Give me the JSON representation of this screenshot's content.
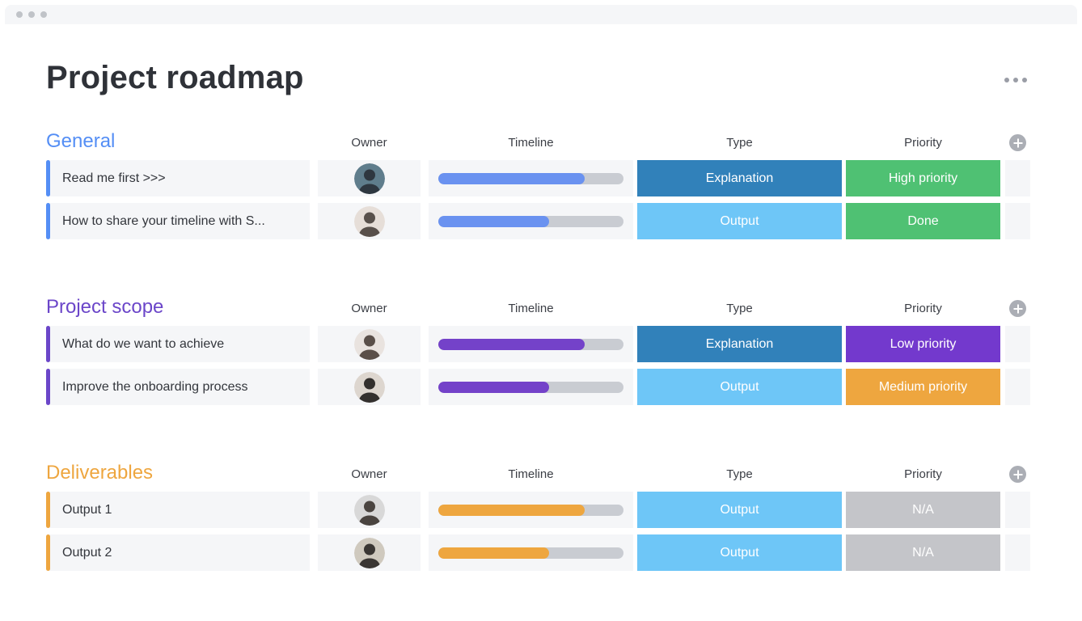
{
  "window": {
    "controls_icon": "window-dots",
    "controls_count": 3
  },
  "page": {
    "title": "Project roadmap"
  },
  "icons": {
    "board_menu": "•••",
    "add_column": "+",
    "window_controls": "•••"
  },
  "columns": {
    "owner": "Owner",
    "timeline": "Timeline",
    "type": "Type",
    "priority": "Priority"
  },
  "colors": {
    "topbar_bg": "#f5f6f8",
    "row_bg": "#f5f6f8",
    "track": "#c9ccd2",
    "badge_text": "#ffffff",
    "plus_circle": "#abaeb5",
    "ellipsis": "#9a9da6",
    "type_explanation": "#3181ba",
    "type_output": "#6ec6f7",
    "priority_high": "#4fc173",
    "priority_done": "#4fc173",
    "priority_low": "#7339cd",
    "priority_medium": "#eea63f",
    "priority_na": "#c4c5c9"
  },
  "groups": [
    {
      "name": "General",
      "color": "#548ef5",
      "timeline_fill": "#6a92f0",
      "rows": [
        {
          "name": "Read me first >>>",
          "timeline_pct": 79,
          "type": {
            "label": "Explanation",
            "color": "#3181ba"
          },
          "priority": {
            "label": "High priority",
            "color": "#4fc173"
          },
          "avatar": {
            "bg": "#5f7d8c",
            "fg": "#2e3740"
          }
        },
        {
          "name": "How to share your timeline with S...",
          "timeline_pct": 60,
          "type": {
            "label": "Output",
            "color": "#6ec6f7"
          },
          "priority": {
            "label": "Done",
            "color": "#4fc173"
          },
          "avatar": {
            "bg": "#e6ded8",
            "fg": "#58504b"
          }
        }
      ]
    },
    {
      "name": "Project scope",
      "color": "#6b46c9",
      "timeline_fill": "#7442c9",
      "rows": [
        {
          "name": "What do we want to achieve",
          "timeline_pct": 79,
          "type": {
            "label": "Explanation",
            "color": "#3181ba"
          },
          "priority": {
            "label": "Low priority",
            "color": "#7339cd"
          },
          "avatar": {
            "bg": "#e9e3df",
            "fg": "#5a4f49"
          }
        },
        {
          "name": "Improve the onboarding process",
          "timeline_pct": 60,
          "type": {
            "label": "Output",
            "color": "#6ec6f7"
          },
          "priority": {
            "label": "Medium priority",
            "color": "#eea63f"
          },
          "avatar": {
            "bg": "#ddd6cf",
            "fg": "#33302e"
          }
        }
      ]
    },
    {
      "name": "Deliverables",
      "color": "#eea63f",
      "timeline_fill": "#eea63f",
      "rows": [
        {
          "name": "Output 1",
          "timeline_pct": 79,
          "type": {
            "label": "Output",
            "color": "#6ec6f7"
          },
          "priority": {
            "label": "N/A",
            "color": "#c4c5c9"
          },
          "avatar": {
            "bg": "#d8d8d8",
            "fg": "#4a4440"
          }
        },
        {
          "name": "Output 2",
          "timeline_pct": 60,
          "type": {
            "label": "Output",
            "color": "#6ec6f7"
          },
          "priority": {
            "label": "N/A",
            "color": "#c4c5c9"
          },
          "avatar": {
            "bg": "#cfc9be",
            "fg": "#3a3633"
          }
        }
      ]
    }
  ]
}
